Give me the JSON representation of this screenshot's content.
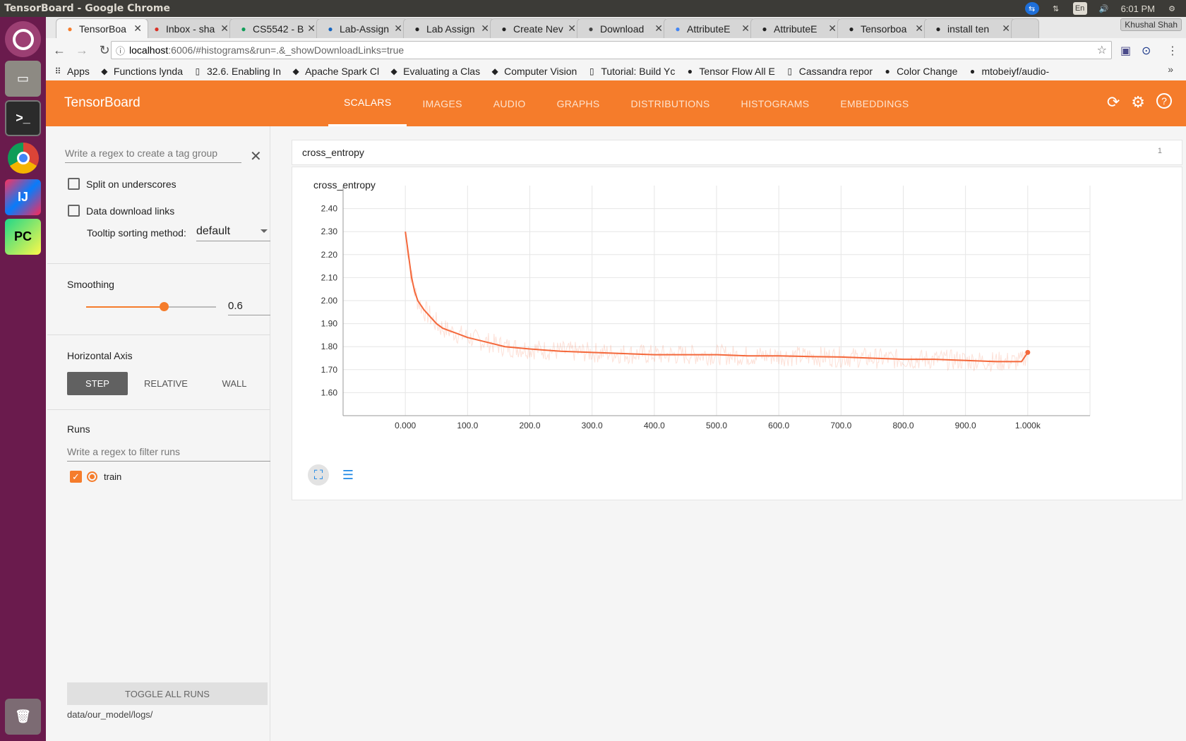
{
  "window_title": "TensorBoard - Google Chrome",
  "system_tray": {
    "lang": "En",
    "time": "6:01 PM"
  },
  "browser": {
    "user": "Khushal Shah",
    "tabs": [
      {
        "label": "TensorBoa",
        "icon": "tensorboard-icon",
        "color": "#f57c2b"
      },
      {
        "label": "Inbox - sha",
        "icon": "gmail-icon",
        "color": "#d93025"
      },
      {
        "label": "CS5542 - B",
        "icon": "sheets-icon",
        "color": "#0f9d58"
      },
      {
        "label": "Lab-Assign",
        "icon": "box-icon",
        "color": "#1565c0"
      },
      {
        "label": "Lab Assign",
        "icon": "github-icon",
        "color": "#222"
      },
      {
        "label": "Create Nev",
        "icon": "github-icon",
        "color": "#222"
      },
      {
        "label": "Download",
        "icon": "download-icon",
        "color": "#444"
      },
      {
        "label": "AttributeE",
        "icon": "google-icon",
        "color": "#4285f4"
      },
      {
        "label": "AttributeE",
        "icon": "github-icon",
        "color": "#222"
      },
      {
        "label": "Tensorboa",
        "icon": "github-icon",
        "color": "#222"
      },
      {
        "label": "install ten",
        "icon": "github-icon",
        "color": "#222"
      }
    ],
    "url_host": "localhost",
    "url_path": ":6006/#histograms&run=.&_showDownloadLinks=true",
    "bookmarks": [
      {
        "label": "Apps",
        "icon": "apps-grid-icon"
      },
      {
        "label": "Functions lynda",
        "icon": "lynda-icon"
      },
      {
        "label": "32.6. Enabling In",
        "icon": "page-icon"
      },
      {
        "label": "Apache Spark Cl",
        "icon": "spark-icon"
      },
      {
        "label": "Evaluating a Clas",
        "icon": "feedly-icon"
      },
      {
        "label": "Computer Vision",
        "icon": "blogger-icon"
      },
      {
        "label": "Tutorial: Build Yc",
        "icon": "page-icon"
      },
      {
        "label": "Tensor Flow All E",
        "icon": "github-icon"
      },
      {
        "label": "Cassandra repor",
        "icon": "page-icon"
      },
      {
        "label": "Color Change",
        "icon": "github-icon"
      },
      {
        "label": "mtobeiyf/audio-",
        "icon": "github-icon"
      }
    ]
  },
  "tensorboard": {
    "brand": "TensorBoard",
    "tabs": [
      "SCALARS",
      "IMAGES",
      "AUDIO",
      "GRAPHS",
      "DISTRIBUTIONS",
      "HISTOGRAMS",
      "EMBEDDINGS"
    ],
    "active_tab": "SCALARS",
    "accent": "#f57c2b"
  },
  "sidebar": {
    "tag_regex_placeholder": "Write a regex to create a tag group",
    "split_underscores": "Split on underscores",
    "data_download_links": "Data download links",
    "tooltip_sorting_label": "Tooltip sorting method:",
    "tooltip_sorting_value": "default",
    "smoothing_label": "Smoothing",
    "smoothing_value": "0.6",
    "smoothing_fraction": 0.6,
    "horizontal_axis_label": "Horizontal Axis",
    "axis_options": [
      "STEP",
      "RELATIVE",
      "WALL"
    ],
    "axis_selected": "STEP",
    "runs_label": "Runs",
    "runs_filter_placeholder": "Write a regex to filter runs",
    "runs": [
      {
        "name": "train",
        "checked": true
      }
    ],
    "toggle_all": "TOGGLE ALL RUNS",
    "log_dir": "data/our_model/logs/"
  },
  "card": {
    "header": "cross_entropy",
    "count": "1"
  },
  "chart_data": {
    "type": "line",
    "title": "cross_entropy",
    "xlabel": "",
    "ylabel": "",
    "xlim": [
      -100,
      1100
    ],
    "ylim": [
      1.5,
      2.5
    ],
    "x_tick_labels": [
      "0.000",
      "100.0",
      "200.0",
      "300.0",
      "400.0",
      "500.0",
      "600.0",
      "700.0",
      "800.0",
      "900.0",
      "1.000k"
    ],
    "x_ticks": [
      0,
      100,
      200,
      300,
      400,
      500,
      600,
      700,
      800,
      900,
      1000
    ],
    "y_tick_labels": [
      "1.60",
      "1.70",
      "1.80",
      "1.90",
      "2.00",
      "2.10",
      "2.20",
      "2.30",
      "2.40"
    ],
    "y_ticks": [
      1.6,
      1.7,
      1.8,
      1.9,
      2.0,
      2.1,
      2.2,
      2.3,
      2.4
    ],
    "grid": true,
    "series": [
      {
        "name": "train",
        "color": "#f4683b",
        "smoothed_x": [
          0,
          5,
          10,
          15,
          20,
          30,
          40,
          50,
          60,
          80,
          100,
          130,
          160,
          200,
          250,
          300,
          350,
          400,
          450,
          500,
          550,
          600,
          650,
          700,
          750,
          800,
          850,
          900,
          950,
          990,
          1000
        ],
        "smoothed_y": [
          2.3,
          2.2,
          2.1,
          2.04,
          2.0,
          1.96,
          1.93,
          1.9,
          1.88,
          1.86,
          1.84,
          1.82,
          1.8,
          1.79,
          1.78,
          1.775,
          1.77,
          1.765,
          1.765,
          1.765,
          1.76,
          1.76,
          1.757,
          1.755,
          1.75,
          1.745,
          1.745,
          1.74,
          1.735,
          1.735,
          1.775
        ]
      }
    ]
  }
}
